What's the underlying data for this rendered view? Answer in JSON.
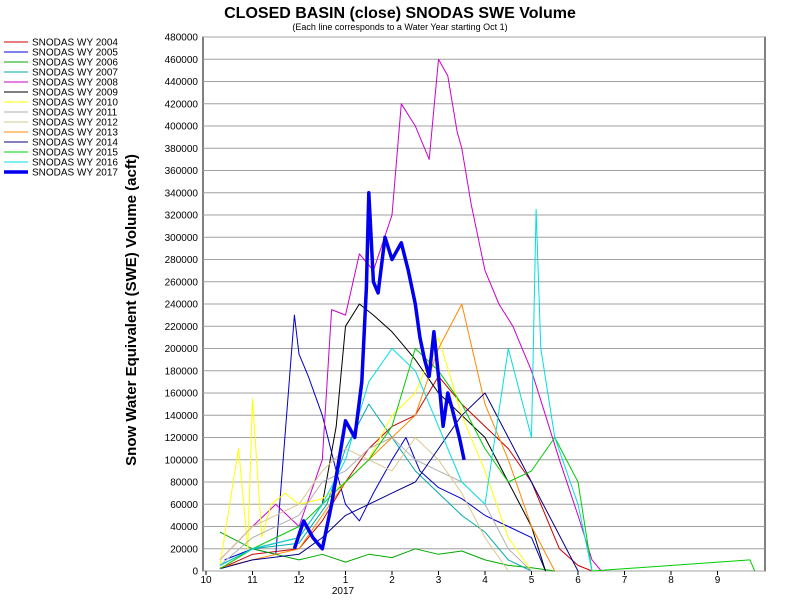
{
  "chart_data": {
    "type": "line",
    "title": "CLOSED BASIN (close) SNODAS SWE Volume",
    "subtitle": "(Each line corresponds to a Water Year starting Oct 1)",
    "ylabel": "Snow Water Equivalent (SWE) Volume (acft)",
    "xlabel": "",
    "ylim": [
      0,
      480000
    ],
    "y_ticks": [
      0,
      20000,
      40000,
      60000,
      80000,
      100000,
      120000,
      140000,
      160000,
      180000,
      200000,
      220000,
      240000,
      260000,
      280000,
      300000,
      320000,
      340000,
      360000,
      380000,
      400000,
      420000,
      440000,
      460000,
      480000
    ],
    "y_tick_labels": [
      "0",
      "20000",
      "40000",
      "60000",
      "80000",
      "100000",
      "120000",
      "140000",
      "160000",
      "180000",
      "200000",
      "220000",
      "240000",
      "260000",
      "280000",
      "300000",
      "320000",
      "340000",
      "360000",
      "380000",
      "400000",
      "420000",
      "440000",
      "460000",
      "480000"
    ],
    "x_ticks": [
      {
        "m": 0,
        "label": "10"
      },
      {
        "m": 1,
        "label": "11"
      },
      {
        "m": 2,
        "label": "12"
      },
      {
        "m": 3,
        "label": "1"
      },
      {
        "m": 4,
        "label": "2"
      },
      {
        "m": 5,
        "label": "3"
      },
      {
        "m": 6,
        "label": "4"
      },
      {
        "m": 7,
        "label": "5"
      },
      {
        "m": 8,
        "label": "6"
      },
      {
        "m": 9,
        "label": "7"
      },
      {
        "m": 10,
        "label": "8"
      },
      {
        "m": 11,
        "label": "9"
      }
    ],
    "x_year_label": "2017",
    "xlim": [
      0,
      11.9
    ],
    "legend_position": "left",
    "grid": true,
    "series": [
      {
        "name": "SNODAS WY 2004",
        "color": "#cc0000",
        "width": 1,
        "x": [
          0.3,
          1.0,
          2.0,
          2.5,
          3.0,
          3.5,
          4.0,
          4.5,
          5.0,
          5.5,
          6.0,
          6.5,
          7.0,
          7.3,
          7.6,
          8.0,
          8.3
        ],
        "y": [
          2000,
          15000,
          20000,
          45000,
          80000,
          110000,
          130000,
          140000,
          175000,
          150000,
          130000,
          110000,
          80000,
          50000,
          20000,
          5000,
          0
        ]
      },
      {
        "name": "SNODAS WY 2005",
        "color": "#0000cc",
        "width": 1,
        "x": [
          0.4,
          1.0,
          1.5,
          1.9,
          2.0,
          2.2,
          2.5,
          2.8,
          3.0,
          3.3,
          3.6,
          4.0,
          4.3,
          4.6,
          5.0,
          5.5,
          6.0,
          6.5,
          7.0,
          7.3
        ],
        "y": [
          10000,
          20000,
          15000,
          230000,
          195000,
          175000,
          140000,
          90000,
          60000,
          45000,
          70000,
          100000,
          120000,
          90000,
          75000,
          65000,
          50000,
          40000,
          30000,
          0
        ]
      },
      {
        "name": "SNODAS WY 2006",
        "color": "#00aa00",
        "width": 1,
        "x": [
          0.3,
          1.0,
          2.0,
          2.5,
          3.0,
          3.5,
          4.0,
          4.5,
          5.0,
          5.5,
          6.0,
          6.5,
          7.0,
          7.5
        ],
        "y": [
          35000,
          20000,
          10000,
          15000,
          8000,
          15000,
          12000,
          20000,
          15000,
          18000,
          10000,
          5000,
          3000,
          0
        ]
      },
      {
        "name": "SNODAS WY 2007",
        "color": "#00aaaa",
        "width": 1,
        "x": [
          0.3,
          1.0,
          2.0,
          2.6,
          3.0,
          3.5,
          4.0,
          4.5,
          5.0,
          5.5,
          6.0,
          6.5,
          7.0
        ],
        "y": [
          5000,
          20000,
          25000,
          60000,
          110000,
          150000,
          120000,
          90000,
          70000,
          50000,
          35000,
          10000,
          0
        ]
      },
      {
        "name": "SNODAS WY 2008",
        "color": "#cc00cc",
        "width": 1,
        "x": [
          0.3,
          1.0,
          1.5,
          2.0,
          2.5,
          2.7,
          3.0,
          3.3,
          3.6,
          4.0,
          4.2,
          4.5,
          4.8,
          5.0,
          5.2,
          5.4,
          5.5,
          5.7,
          6.0,
          6.3,
          6.6,
          7.0,
          7.3,
          7.6,
          8.0,
          8.3,
          8.5
        ],
        "y": [
          10000,
          40000,
          60000,
          40000,
          100000,
          235000,
          230000,
          285000,
          270000,
          320000,
          420000,
          400000,
          370000,
          460000,
          445000,
          395000,
          380000,
          330000,
          270000,
          240000,
          220000,
          180000,
          140000,
          100000,
          50000,
          10000,
          0
        ]
      },
      {
        "name": "SNODAS WY 2009",
        "color": "#000000",
        "width": 1,
        "x": [
          0.3,
          1.0,
          2.0,
          2.5,
          2.8,
          3.0,
          3.3,
          3.6,
          4.0,
          4.5,
          5.0,
          5.5,
          6.0,
          6.5,
          7.0,
          7.3
        ],
        "y": [
          5000,
          20000,
          30000,
          60000,
          130000,
          220000,
          240000,
          230000,
          215000,
          190000,
          160000,
          140000,
          120000,
          80000,
          40000,
          0
        ]
      },
      {
        "name": "SNODAS WY 2010",
        "color": "#ffff00",
        "width": 1,
        "x": [
          0.3,
          0.7,
          0.9,
          1.0,
          1.2,
          1.4,
          1.7,
          2.0,
          2.5,
          3.0,
          3.5,
          4.0,
          4.5,
          5.0,
          5.5,
          6.0,
          6.5,
          7.0
        ],
        "y": [
          5000,
          110000,
          20000,
          155000,
          30000,
          60000,
          70000,
          60000,
          65000,
          80000,
          100000,
          140000,
          160000,
          210000,
          140000,
          90000,
          30000,
          0
        ]
      },
      {
        "name": "SNODAS WY 2011",
        "color": "#b0b0b0",
        "width": 1,
        "x": [
          0.3,
          1.0,
          2.0,
          2.5,
          3.0,
          3.5,
          4.0,
          4.5,
          5.0,
          5.5,
          6.0,
          6.5,
          7.0
        ],
        "y": [
          5000,
          30000,
          50000,
          80000,
          90000,
          110000,
          120000,
          100000,
          90000,
          80000,
          60000,
          20000,
          0
        ]
      },
      {
        "name": "SNODAS WY 2012",
        "color": "#d8c890",
        "width": 1,
        "x": [
          0.3,
          1.0,
          2.0,
          2.5,
          3.0,
          3.5,
          4.0,
          4.5,
          5.0,
          5.5,
          6.0,
          6.5
        ],
        "y": [
          10000,
          40000,
          60000,
          90000,
          110000,
          100000,
          90000,
          120000,
          100000,
          70000,
          30000,
          0
        ]
      },
      {
        "name": "SNODAS WY 2013",
        "color": "#ff8800",
        "width": 1,
        "x": [
          0.3,
          1.0,
          2.0,
          2.5,
          3.0,
          3.5,
          4.0,
          4.5,
          5.0,
          5.5,
          6.0,
          6.5,
          7.0,
          7.5
        ],
        "y": [
          3000,
          10000,
          20000,
          50000,
          80000,
          100000,
          120000,
          140000,
          200000,
          240000,
          150000,
          100000,
          40000,
          0
        ]
      },
      {
        "name": "SNODAS WY 2014",
        "color": "#000088",
        "width": 1,
        "x": [
          0.3,
          1.0,
          2.0,
          2.5,
          3.0,
          3.5,
          4.0,
          4.5,
          5.0,
          5.5,
          6.0,
          6.5,
          7.0,
          7.5,
          8.0
        ],
        "y": [
          2000,
          10000,
          15000,
          30000,
          50000,
          60000,
          70000,
          80000,
          110000,
          140000,
          160000,
          120000,
          80000,
          40000,
          0
        ]
      },
      {
        "name": "SNODAS WY 2015",
        "color": "#00cc00",
        "width": 1,
        "x": [
          0.3,
          1.0,
          2.0,
          2.5,
          3.0,
          3.5,
          4.0,
          4.5,
          5.0,
          5.5,
          6.0,
          6.5,
          7.0,
          7.5,
          8.0,
          8.3,
          11.7,
          11.8
        ],
        "y": [
          2000,
          20000,
          40000,
          60000,
          80000,
          100000,
          130000,
          200000,
          180000,
          150000,
          110000,
          80000,
          90000,
          120000,
          80000,
          0,
          10000,
          0
        ]
      },
      {
        "name": "SNODAS WY 2016",
        "color": "#00e0e0",
        "width": 1,
        "x": [
          0.3,
          1.0,
          2.0,
          2.5,
          3.0,
          3.5,
          4.0,
          4.5,
          5.0,
          5.5,
          6.0,
          6.5,
          7.0,
          7.1,
          7.2,
          7.5,
          8.0,
          8.3
        ],
        "y": [
          5000,
          20000,
          30000,
          60000,
          100000,
          170000,
          200000,
          180000,
          130000,
          80000,
          60000,
          200000,
          120000,
          325000,
          200000,
          120000,
          60000,
          0
        ]
      },
      {
        "name": "SNODAS WY 2017",
        "color": "#0000ee",
        "width": 3.5,
        "x": [
          1.9,
          2.1,
          2.3,
          2.5,
          2.7,
          2.9,
          3.0,
          3.2,
          3.35,
          3.45,
          3.5,
          3.6,
          3.7,
          3.85,
          4.0,
          4.2,
          4.35,
          4.5,
          4.6,
          4.7,
          4.8,
          4.9,
          5.0,
          5.1,
          5.2,
          5.3,
          5.45,
          5.55
        ],
        "y": [
          20000,
          45000,
          30000,
          20000,
          60000,
          110000,
          135000,
          120000,
          170000,
          255000,
          340000,
          260000,
          250000,
          300000,
          280000,
          295000,
          270000,
          240000,
          210000,
          190000,
          175000,
          215000,
          175000,
          130000,
          160000,
          145000,
          120000,
          100000
        ]
      }
    ]
  }
}
